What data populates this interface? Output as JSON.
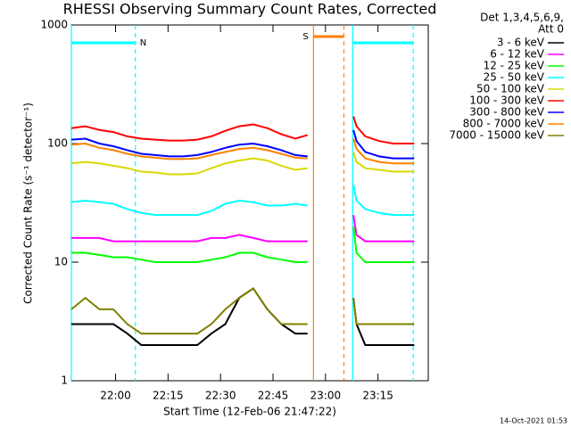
{
  "chart_data": {
    "type": "line",
    "title": "RHESSI Observing Summary Count Rates, Corrected",
    "x_label": "Start Time (12-Feb-06 21:47:22)",
    "y_label": "Corrected Count Rate (s⁻¹ detector⁻¹)",
    "legend_header": [
      "Det 1,3,4,5,6,9,",
      "Att 0"
    ],
    "timestamp": "14-Oct-2021 01:53",
    "log_y": true,
    "xlim": [
      0,
      102
    ],
    "ylim": [
      1,
      1000
    ],
    "xticks": [
      {
        "value": 12.63,
        "label": "22:00"
      },
      {
        "value": 27.63,
        "label": "22:15"
      },
      {
        "value": 42.63,
        "label": "22:30"
      },
      {
        "value": 57.63,
        "label": "22:45"
      },
      {
        "value": 72.63,
        "label": "23:00"
      },
      {
        "value": 87.63,
        "label": "23:15"
      }
    ],
    "yticks": [
      1,
      10,
      100,
      1000
    ],
    "intervals": [
      {
        "label": "N",
        "color": "#00ffff",
        "start": 0,
        "end": 18.3
      },
      {
        "label": "S",
        "color": "#ff8000",
        "start": 69.2,
        "end": 77.9
      },
      {
        "color": "#00ffff",
        "start": 80.4,
        "end": 97.7
      }
    ],
    "vlines": [
      {
        "x": 0,
        "color": "#00ffff",
        "dashed": false
      },
      {
        "x": 18.3,
        "color": "#00ffff",
        "dashed": true
      },
      {
        "x": 69.2,
        "color": "#ff8000",
        "dashed": false
      },
      {
        "x": 77.9,
        "color": "#ff8000",
        "dashed": true
      },
      {
        "x": 80.4,
        "color": "#00ffff",
        "dashed": false
      },
      {
        "x": 97.7,
        "color": "#00ffff",
        "dashed": true
      }
    ],
    "x": [
      0,
      4,
      8,
      12,
      16,
      20,
      24,
      28,
      32,
      36,
      40,
      44,
      48,
      52,
      56,
      60,
      64,
      67.5,
      72,
      80.6,
      81.5,
      84,
      88,
      92,
      96,
      98
    ],
    "series": [
      {
        "name": "3 - 6 keV",
        "color": "#000000",
        "values": [
          3,
          3,
          3,
          3,
          2.5,
          2,
          2,
          2,
          2,
          2,
          2.5,
          3,
          5,
          6,
          4,
          3,
          2.5,
          2.5,
          null,
          5,
          3,
          2,
          2,
          2,
          2,
          2
        ]
      },
      {
        "name": "6 - 12 keV",
        "color": "#ff00ff",
        "values": [
          16,
          16,
          16,
          15,
          15,
          15,
          15,
          15,
          15,
          15,
          16,
          16,
          17,
          16,
          15,
          15,
          15,
          15,
          null,
          25,
          17,
          15,
          15,
          15,
          15,
          15
        ]
      },
      {
        "name": "12 - 25 keV",
        "color": "#00ff00",
        "values": [
          12,
          12,
          11.5,
          11,
          11,
          10.5,
          10,
          10,
          10,
          10,
          10.5,
          11,
          12,
          12,
          11,
          10.5,
          10,
          10,
          null,
          20,
          12,
          10,
          10,
          10,
          10,
          10
        ]
      },
      {
        "name": "25 - 50 keV",
        "color": "#00ffff",
        "values": [
          32,
          33,
          32,
          31,
          28,
          26,
          25,
          25,
          25,
          25,
          27,
          31,
          33,
          32,
          30,
          30,
          31,
          30,
          null,
          45,
          33,
          28,
          26,
          25,
          25,
          25
        ]
      },
      {
        "name": "50 - 100 keV",
        "color": "#d8d800",
        "values": [
          68,
          70,
          68,
          65,
          62,
          58,
          57,
          55,
          55,
          56,
          62,
          68,
          72,
          75,
          72,
          65,
          60,
          62,
          null,
          85,
          70,
          62,
          60,
          58,
          58,
          58
        ]
      },
      {
        "name": "100 - 300 keV",
        "color": "#ff0000",
        "values": [
          135,
          140,
          130,
          125,
          115,
          110,
          108,
          106,
          106,
          108,
          115,
          128,
          140,
          145,
          135,
          120,
          110,
          118,
          null,
          170,
          140,
          115,
          105,
          100,
          100,
          100
        ]
      },
      {
        "name": "300 - 800 keV",
        "color": "#0000ff",
        "values": [
          108,
          110,
          100,
          95,
          88,
          82,
          80,
          78,
          78,
          80,
          85,
          92,
          98,
          100,
          95,
          88,
          80,
          78,
          null,
          130,
          105,
          85,
          78,
          75,
          75,
          75
        ]
      },
      {
        "name": "800 - 7000 keV",
        "color": "#ff8000",
        "values": [
          98,
          100,
          92,
          88,
          82,
          78,
          76,
          74,
          74,
          75,
          80,
          85,
          90,
          92,
          88,
          82,
          76,
          75,
          null,
          110,
          90,
          75,
          70,
          68,
          68,
          68
        ]
      },
      {
        "name": "7000 - 15000 keV",
        "color": "#808000",
        "values": [
          4,
          5,
          4,
          4,
          3,
          2.5,
          2.5,
          2.5,
          2.5,
          2.5,
          3,
          4,
          5,
          6,
          4,
          3,
          3,
          3,
          null,
          5,
          3,
          3,
          3,
          3,
          3,
          3
        ]
      }
    ]
  }
}
